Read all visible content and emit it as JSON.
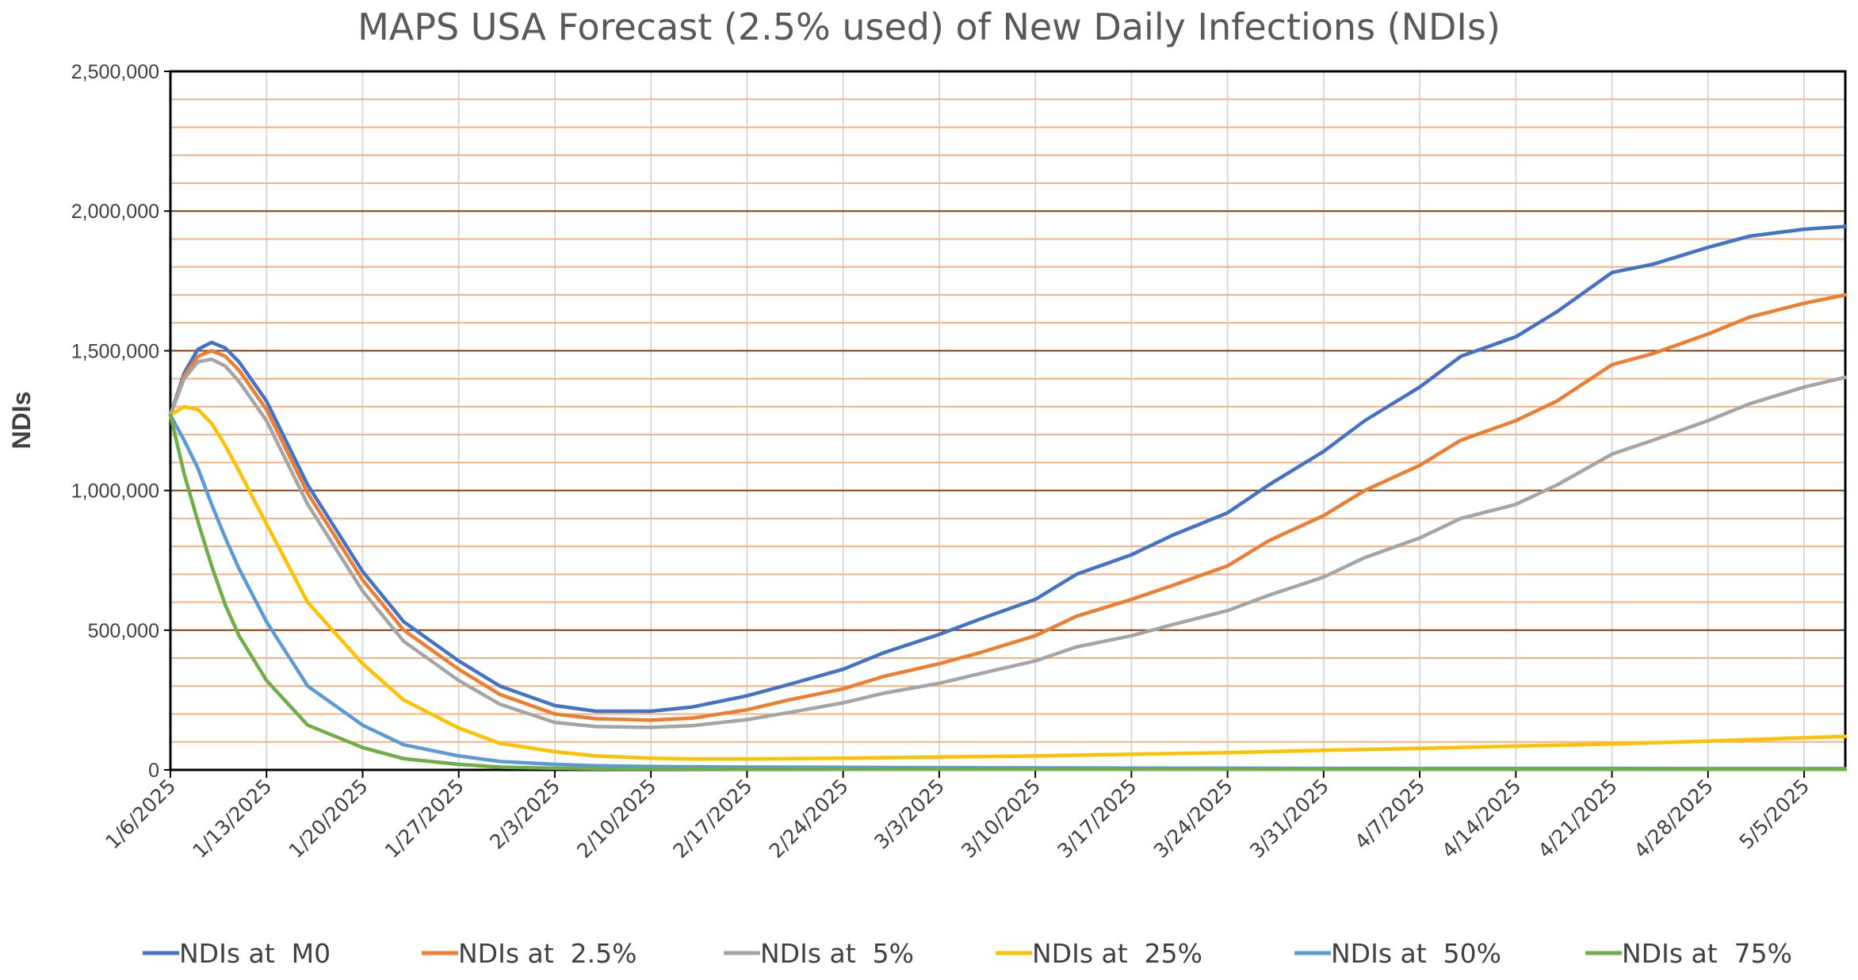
{
  "chart_data": {
    "type": "line",
    "title": "MAPS USA Forecast (2.5% used) of New Daily Infections (NDIs)",
    "xlabel": "",
    "ylabel": "NDIs",
    "ylim": [
      0,
      2500000
    ],
    "yticks": [
      "0",
      "500,000",
      "1,000,000",
      "1,500,000",
      "2,000,000",
      "2,500,000"
    ],
    "x_range": [
      "1/6/2025",
      "5/8/2025"
    ],
    "xticks": [
      "1/6/2025",
      "1/13/2025",
      "1/20/2025",
      "1/27/2025",
      "2/3/2025",
      "2/10/2025",
      "2/17/2025",
      "2/24/2025",
      "3/3/2025",
      "3/10/2025",
      "3/17/2025",
      "3/24/2025",
      "3/31/2025",
      "4/7/2025",
      "4/14/2025",
      "4/21/2025",
      "4/28/2025",
      "5/5/2025"
    ],
    "grid": "vertical gray every 7 days; horizontal orange every 100,000 and brown every 500,000",
    "legend_position": "bottom",
    "series": [
      {
        "name": "NDIs at  M0",
        "color": "#4472C4",
        "x": [
          "1/6/2025",
          "1/7/2025",
          "1/8/2025",
          "1/9/2025",
          "1/10/2025",
          "1/11/2025",
          "1/13/2025",
          "1/16/2025",
          "1/20/2025",
          "1/23/2025",
          "1/27/2025",
          "1/30/2025",
          "2/3/2025",
          "2/6/2025",
          "2/10/2025",
          "2/13/2025",
          "2/17/2025",
          "2/20/2025",
          "2/24/2025",
          "2/27/2025",
          "3/3/2025",
          "3/6/2025",
          "3/10/2025",
          "3/13/2025",
          "3/17/2025",
          "3/20/2025",
          "3/24/2025",
          "3/27/2025",
          "3/31/2025",
          "4/3/2025",
          "4/7/2025",
          "4/10/2025",
          "4/14/2025",
          "4/17/2025",
          "4/21/2025",
          "4/24/2025",
          "4/28/2025",
          "5/1/2025",
          "5/5/2025",
          "5/8/2025"
        ],
        "y": [
          1270000,
          1420000,
          1505000,
          1530000,
          1510000,
          1460000,
          1320000,
          1020000,
          710000,
          530000,
          390000,
          300000,
          230000,
          210000,
          210000,
          225000,
          265000,
          305000,
          360000,
          420000,
          485000,
          540000,
          610000,
          700000,
          770000,
          840000,
          920000,
          1020000,
          1140000,
          1250000,
          1370000,
          1480000,
          1550000,
          1640000,
          1780000,
          1810000,
          1870000,
          1910000,
          1935000,
          1945000
        ]
      },
      {
        "name": "NDIs at  2.5%",
        "color": "#ED7D31",
        "x": [
          "1/6/2025",
          "1/7/2025",
          "1/8/2025",
          "1/9/2025",
          "1/10/2025",
          "1/11/2025",
          "1/13/2025",
          "1/16/2025",
          "1/20/2025",
          "1/23/2025",
          "1/27/2025",
          "1/30/2025",
          "2/3/2025",
          "2/6/2025",
          "2/10/2025",
          "2/13/2025",
          "2/17/2025",
          "2/20/2025",
          "2/24/2025",
          "2/27/2025",
          "3/3/2025",
          "3/6/2025",
          "3/10/2025",
          "3/13/2025",
          "3/17/2025",
          "3/20/2025",
          "3/24/2025",
          "3/27/2025",
          "3/31/2025",
          "4/3/2025",
          "4/7/2025",
          "4/10/2025",
          "4/14/2025",
          "4/17/2025",
          "4/21/2025",
          "4/24/2025",
          "4/28/2025",
          "5/1/2025",
          "5/5/2025",
          "5/8/2025"
        ],
        "y": [
          1270000,
          1410000,
          1480000,
          1500000,
          1480000,
          1430000,
          1290000,
          990000,
          680000,
          500000,
          360000,
          270000,
          200000,
          183000,
          178000,
          185000,
          215000,
          250000,
          290000,
          335000,
          380000,
          420000,
          480000,
          550000,
          610000,
          660000,
          730000,
          820000,
          910000,
          1000000,
          1090000,
          1180000,
          1250000,
          1320000,
          1450000,
          1490000,
          1560000,
          1620000,
          1670000,
          1700000
        ]
      },
      {
        "name": "NDIs at  5%",
        "color": "#A5A5A5",
        "x": [
          "1/6/2025",
          "1/7/2025",
          "1/8/2025",
          "1/9/2025",
          "1/10/2025",
          "1/11/2025",
          "1/13/2025",
          "1/16/2025",
          "1/20/2025",
          "1/23/2025",
          "1/27/2025",
          "1/30/2025",
          "2/3/2025",
          "2/6/2025",
          "2/10/2025",
          "2/13/2025",
          "2/17/2025",
          "2/20/2025",
          "2/24/2025",
          "2/27/2025",
          "3/3/2025",
          "3/6/2025",
          "3/10/2025",
          "3/13/2025",
          "3/17/2025",
          "3/20/2025",
          "3/24/2025",
          "3/27/2025",
          "3/31/2025",
          "4/3/2025",
          "4/7/2025",
          "4/10/2025",
          "4/14/2025",
          "4/17/2025",
          "4/21/2025",
          "4/24/2025",
          "4/28/2025",
          "5/1/2025",
          "5/5/2025",
          "5/8/2025"
        ],
        "y": [
          1270000,
          1400000,
          1460000,
          1470000,
          1445000,
          1390000,
          1250000,
          950000,
          640000,
          460000,
          320000,
          235000,
          170000,
          155000,
          152000,
          158000,
          180000,
          205000,
          240000,
          275000,
          310000,
          345000,
          390000,
          440000,
          480000,
          520000,
          570000,
          625000,
          690000,
          760000,
          830000,
          900000,
          950000,
          1020000,
          1130000,
          1180000,
          1250000,
          1310000,
          1370000,
          1405000
        ]
      },
      {
        "name": "NDIs at  25%",
        "color": "#FFC000",
        "x": [
          "1/6/2025",
          "1/7/2025",
          "1/8/2025",
          "1/9/2025",
          "1/10/2025",
          "1/11/2025",
          "1/13/2025",
          "1/16/2025",
          "1/20/2025",
          "1/23/2025",
          "1/27/2025",
          "1/30/2025",
          "2/3/2025",
          "2/6/2025",
          "2/10/2025",
          "2/13/2025",
          "2/17/2025",
          "2/24/2025",
          "3/3/2025",
          "3/10/2025",
          "3/17/2025",
          "3/24/2025",
          "3/31/2025",
          "4/7/2025",
          "4/14/2025",
          "4/21/2025",
          "4/28/2025",
          "5/5/2025",
          "5/8/2025"
        ],
        "y": [
          1270000,
          1300000,
          1290000,
          1240000,
          1160000,
          1070000,
          880000,
          600000,
          380000,
          250000,
          150000,
          95000,
          65000,
          50000,
          42000,
          39000,
          39000,
          42000,
          46000,
          50000,
          56000,
          62000,
          70000,
          77000,
          85000,
          93000,
          103000,
          115000,
          120000
        ]
      },
      {
        "name": "NDIs at  50%",
        "color": "#5B9BD5",
        "x": [
          "1/6/2025",
          "1/7/2025",
          "1/8/2025",
          "1/9/2025",
          "1/10/2025",
          "1/11/2025",
          "1/13/2025",
          "1/16/2025",
          "1/20/2025",
          "1/23/2025",
          "1/27/2025",
          "1/30/2025",
          "2/3/2025",
          "2/6/2025",
          "2/10/2025",
          "2/17/2025",
          "2/24/2025",
          "3/3/2025",
          "3/10/2025",
          "3/17/2025",
          "3/24/2025",
          "3/31/2025",
          "4/7/2025",
          "4/14/2025",
          "4/21/2025",
          "4/28/2025",
          "5/5/2025",
          "5/8/2025"
        ],
        "y": [
          1270000,
          1180000,
          1080000,
          950000,
          830000,
          720000,
          530000,
          300000,
          160000,
          90000,
          50000,
          30000,
          20000,
          15000,
          12000,
          10000,
          9000,
          8000,
          7000,
          6500,
          6000,
          5500,
          5200,
          5000,
          4800,
          4600,
          4500,
          4500
        ]
      },
      {
        "name": "NDIs at  75%",
        "color": "#70AD47",
        "x": [
          "1/6/2025",
          "1/7/2025",
          "1/8/2025",
          "1/9/2025",
          "1/10/2025",
          "1/11/2025",
          "1/13/2025",
          "1/16/2025",
          "1/20/2025",
          "1/23/2025",
          "1/27/2025",
          "1/30/2025",
          "2/3/2025",
          "2/6/2025",
          "2/10/2025",
          "2/17/2025",
          "2/24/2025",
          "3/3/2025",
          "3/10/2025",
          "3/17/2025",
          "3/24/2025",
          "3/31/2025",
          "4/7/2025",
          "4/14/2025",
          "4/21/2025",
          "4/28/2025",
          "5/5/2025",
          "5/8/2025"
        ],
        "y": [
          1270000,
          1060000,
          890000,
          730000,
          590000,
          480000,
          320000,
          160000,
          80000,
          40000,
          20000,
          10000,
          6000,
          4000,
          3000,
          2500,
          2200,
          2000,
          2000,
          2000,
          2000,
          2000,
          2000,
          2000,
          2000,
          2000,
          2000,
          2000
        ]
      }
    ]
  }
}
